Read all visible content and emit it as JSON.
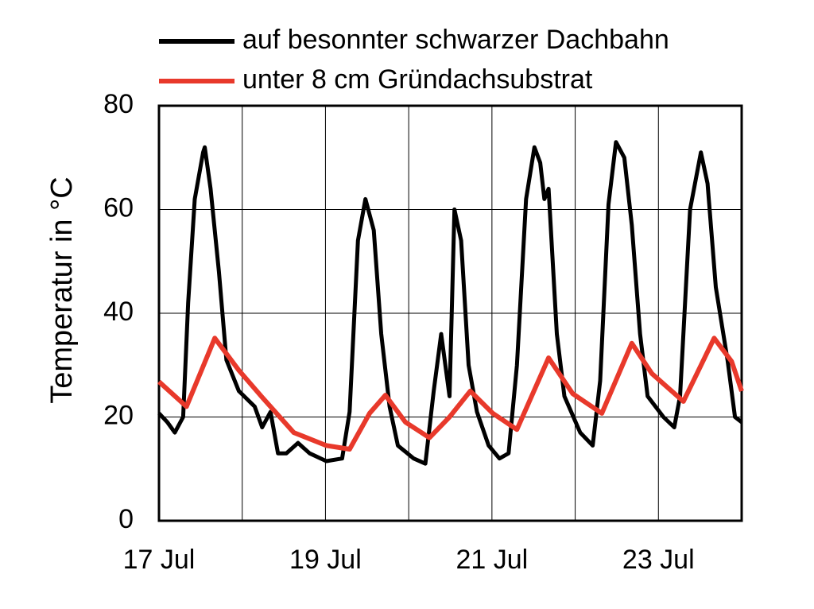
{
  "chart_data": {
    "type": "line",
    "ylabel": "Temperatur in °C",
    "xlim": [
      17,
      24
    ],
    "ylim": [
      0,
      80
    ],
    "yticks": [
      0,
      20,
      40,
      60,
      80
    ],
    "xticks": [
      {
        "value": 17,
        "label": "17 Jul"
      },
      {
        "value": 19,
        "label": "19 Jul"
      },
      {
        "value": 21,
        "label": "21 Jul"
      },
      {
        "value": 23,
        "label": "23 Jul"
      }
    ],
    "x_minor_grid": [
      18,
      20,
      22
    ],
    "grid": true,
    "series": [
      {
        "name": "auf besonnter schwarzer Dachbahn",
        "color": "#000000",
        "x": [
          17.0,
          17.1,
          17.19,
          17.29,
          17.35,
          17.43,
          17.53,
          17.55,
          17.62,
          17.72,
          17.81,
          17.96,
          18.15,
          18.24,
          18.34,
          18.43,
          18.53,
          18.67,
          18.81,
          19.01,
          19.2,
          19.29,
          19.39,
          19.48,
          19.58,
          19.67,
          19.77,
          19.87,
          20.06,
          20.2,
          20.3,
          20.39,
          20.49,
          20.55,
          20.63,
          20.72,
          20.82,
          20.96,
          21.09,
          21.2,
          21.3,
          21.41,
          21.51,
          21.58,
          21.63,
          21.68,
          21.78,
          21.87,
          22.06,
          22.21,
          22.3,
          22.4,
          22.49,
          22.59,
          22.68,
          22.78,
          22.87,
          23.06,
          23.19,
          23.26,
          23.38,
          23.51,
          23.59,
          23.69,
          23.83,
          23.92,
          24.0
        ],
        "values": [
          20.7,
          19,
          17,
          20,
          42,
          62,
          71,
          72,
          64,
          48,
          31,
          25,
          22,
          18,
          21,
          13,
          13,
          15,
          13,
          11.5,
          12,
          21,
          54,
          62,
          56,
          36,
          22,
          14.5,
          12,
          11,
          25,
          36,
          24,
          60,
          54,
          30,
          21,
          14.5,
          12,
          13,
          30,
          62,
          72,
          69,
          62,
          64,
          36,
          24,
          17,
          14.5,
          27,
          61,
          73,
          70,
          57,
          36,
          24,
          20,
          18,
          24,
          60,
          71,
          65,
          45,
          31,
          20,
          19
        ]
      },
      {
        "name": "unter 8 cm Gründachsubstrat",
        "color": "#e8392b",
        "x": [
          17.0,
          17.33,
          17.67,
          17.96,
          18.24,
          18.62,
          19.01,
          19.29,
          19.53,
          19.72,
          19.96,
          20.25,
          20.49,
          20.74,
          21.01,
          21.3,
          21.68,
          21.97,
          22.32,
          22.68,
          22.92,
          23.3,
          23.67,
          23.88,
          24.0
        ],
        "values": [
          26.8,
          22,
          35.2,
          29,
          23.8,
          17,
          14.5,
          13.8,
          20.7,
          24.2,
          19,
          16,
          20,
          25,
          20.7,
          17.6,
          31.4,
          24.5,
          20.7,
          34.2,
          28.4,
          23,
          35.2,
          30.7,
          25
        ]
      }
    ]
  }
}
